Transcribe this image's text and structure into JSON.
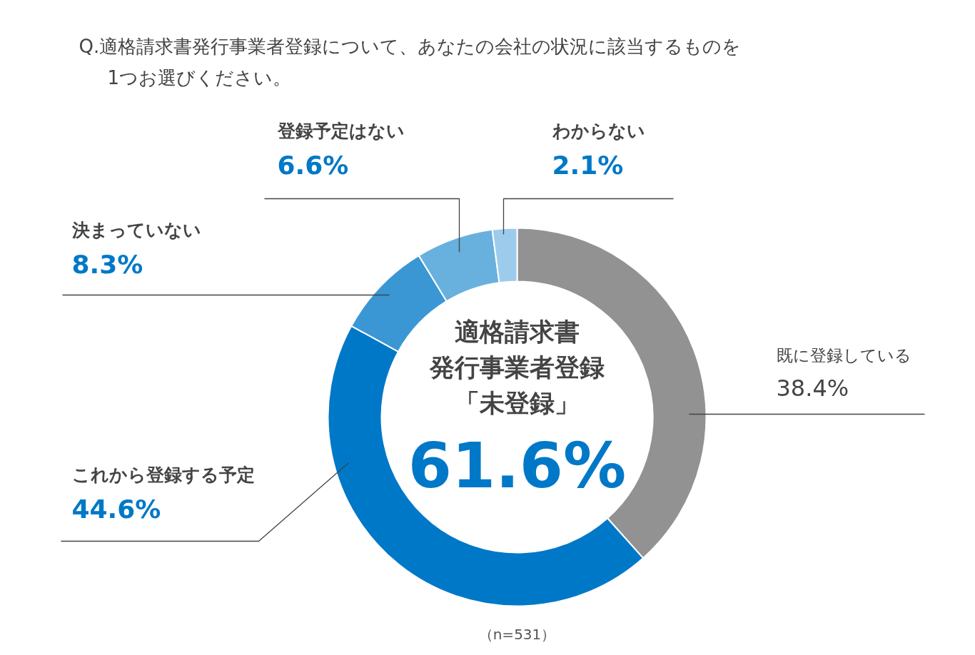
{
  "chart_data": {
    "type": "donut",
    "title": "Q.適格請求書発行事業者登録について、あなたの会社の状況に該当するものを1つお選びください。",
    "categories": [
      "既に登録している",
      "これから登録する予定",
      "決まっていない",
      "登録予定はない",
      "わからない"
    ],
    "values": [
      38.4,
      44.6,
      8.3,
      6.6,
      2.1
    ],
    "colors": [
      "#929292",
      "#0078c8",
      "#3a97d4",
      "#68b0de",
      "#9dcbeb"
    ],
    "value_labels": [
      "38.4%",
      "44.6%",
      "8.3%",
      "6.6%",
      "2.1%"
    ],
    "annotations": [
      "適格請求書",
      "発行事業者登録",
      "「未登録」",
      "61.6%",
      "（n=531）"
    ]
  }
}
